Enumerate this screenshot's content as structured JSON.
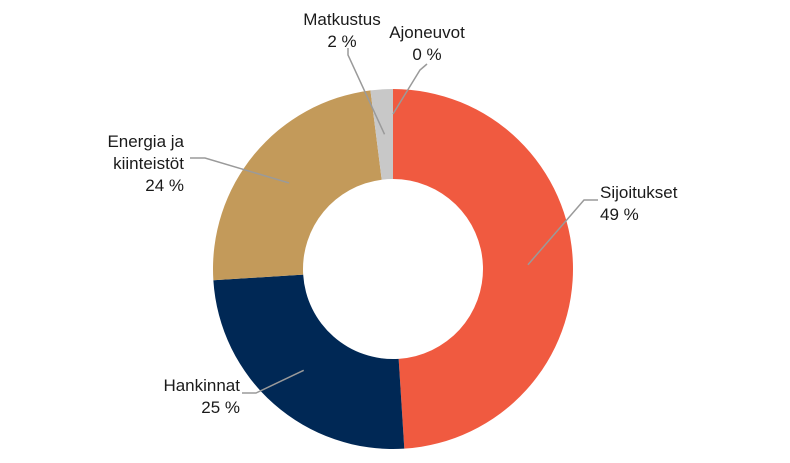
{
  "chart_data": {
    "type": "pie",
    "donut": true,
    "categories": [
      "Sijoitukset",
      "Hankinnat",
      "Energia ja kiinteistöt",
      "Matkustus",
      "Ajoneuvot"
    ],
    "values": [
      49,
      25,
      24,
      2,
      0
    ],
    "value_labels": [
      "49 %",
      "25 %",
      "24 %",
      "2 %",
      "0 %"
    ],
    "label_lines": [
      [
        "Sijoitukset"
      ],
      [
        "Hankinnat"
      ],
      [
        "Energia ja",
        "kiinteistöt"
      ],
      [
        "Matkustus"
      ],
      [
        "Ajoneuvot"
      ]
    ],
    "colors": [
      "#F05A40",
      "#002855",
      "#C39A5A",
      "#C8C8C8",
      "#A0A0A0"
    ],
    "title": "",
    "legend": "none"
  }
}
